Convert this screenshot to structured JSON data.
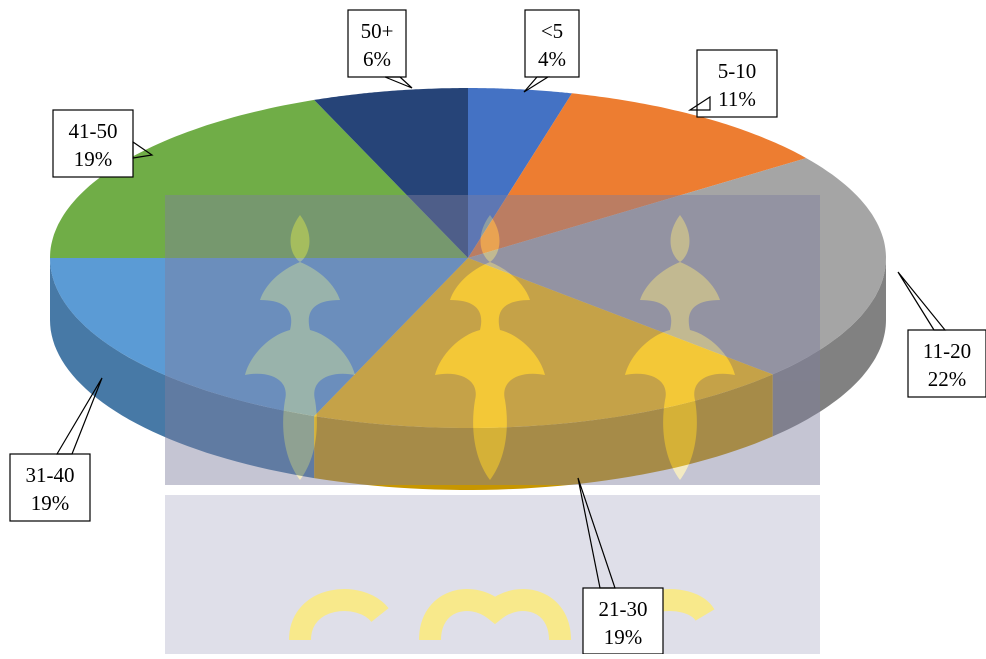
{
  "chart_data": {
    "type": "pie",
    "title": "",
    "categories": [
      "<5",
      "5-10",
      "11-20",
      "21-30",
      "31-40",
      "41-50",
      "50+"
    ],
    "values": [
      4,
      11,
      22,
      19,
      19,
      19,
      6
    ],
    "value_labels": [
      "4%",
      "11%",
      "22%",
      "19%",
      "19%",
      "19%",
      "6%"
    ],
    "colors": [
      "#4472C4",
      "#ED7D31",
      "#A5A5A5",
      "#FFC000",
      "#5B9BD5",
      "#70AD47",
      "#264478"
    ],
    "style": "3d",
    "legend": "none"
  }
}
